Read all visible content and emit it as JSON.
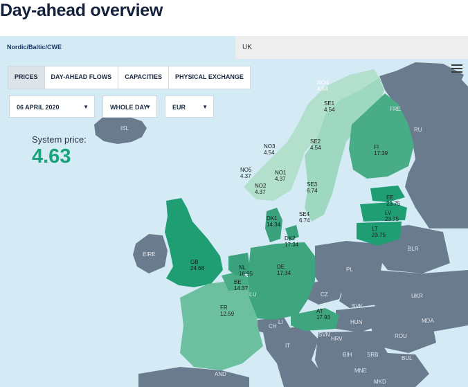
{
  "page": {
    "title": "Day-ahead overview"
  },
  "regions": {
    "active": "Nordic/Baltic/CWE",
    "other": "UK"
  },
  "tabs": [
    "PRICES",
    "DAY-AHEAD FLOWS",
    "CAPACITIES",
    "PHYSICAL EXCHANGE"
  ],
  "filters": {
    "date": "06 APRIL 2020",
    "period": "WHOLE DAY",
    "currency": "EUR"
  },
  "system_price": {
    "label": "System price:",
    "value": "4.63"
  },
  "icons": {
    "menu": "hamburger-menu-icon",
    "caret": "chevron-down-icon"
  },
  "colors": {
    "title": "#14213d",
    "accent_price": "#1aa37a",
    "sea": "#d4ebf5",
    "non_market": "#6b7b8e"
  },
  "areas": {
    "no4": {
      "name": "NO4",
      "price": "4.54"
    },
    "se1": {
      "name": "SE1",
      "price": "4.54"
    },
    "se2": {
      "name": "SE2",
      "price": "4.54"
    },
    "no3": {
      "name": "NO3",
      "price": "4.54"
    },
    "no5": {
      "name": "NO5",
      "price": "4.37"
    },
    "no1": {
      "name": "NO1",
      "price": "4.37"
    },
    "no2": {
      "name": "NO2",
      "price": "4.37"
    },
    "se3": {
      "name": "SE3",
      "price": "6.74"
    },
    "se4": {
      "name": "SE4",
      "price": "6.74"
    },
    "fi": {
      "name": "FI",
      "price": "17.39"
    },
    "ee": {
      "name": "EE",
      "price": "23.75"
    },
    "lv": {
      "name": "LV",
      "price": "23.75"
    },
    "lt": {
      "name": "LT",
      "price": "23.75"
    },
    "dk1": {
      "name": "DK1",
      "price": "14.34"
    },
    "dk2": {
      "name": "DK2",
      "price": "17.34"
    },
    "gb": {
      "name": "GB",
      "price": "24.68"
    },
    "nl": {
      "name": "NL",
      "price": "16.95"
    },
    "be": {
      "name": "BE",
      "price": "14.37"
    },
    "de": {
      "name": "DE",
      "price": "17.34"
    },
    "fr": {
      "name": "FR",
      "price": "12.59"
    },
    "at": {
      "name": "AT",
      "price": "17.93"
    }
  },
  "countries": {
    "isl": "ISL",
    "eire": "EIRE",
    "ru": "RU",
    "fre": "FRE",
    "blr": "BLR",
    "pl": "PL",
    "ukr": "UKR",
    "cz": "CZ",
    "svk": "SVK",
    "hun": "HUN",
    "mda": "MDA",
    "rou": "ROU",
    "ch": "CH",
    "li": "LI",
    "svn": "SVN",
    "hrv": "HRV",
    "it": "IT",
    "bih": "BIH",
    "srb": "SRB",
    "bul": "BUL",
    "mne": "MNE",
    "lu": "LU",
    "mkd": "MKD",
    "and": "AND"
  }
}
